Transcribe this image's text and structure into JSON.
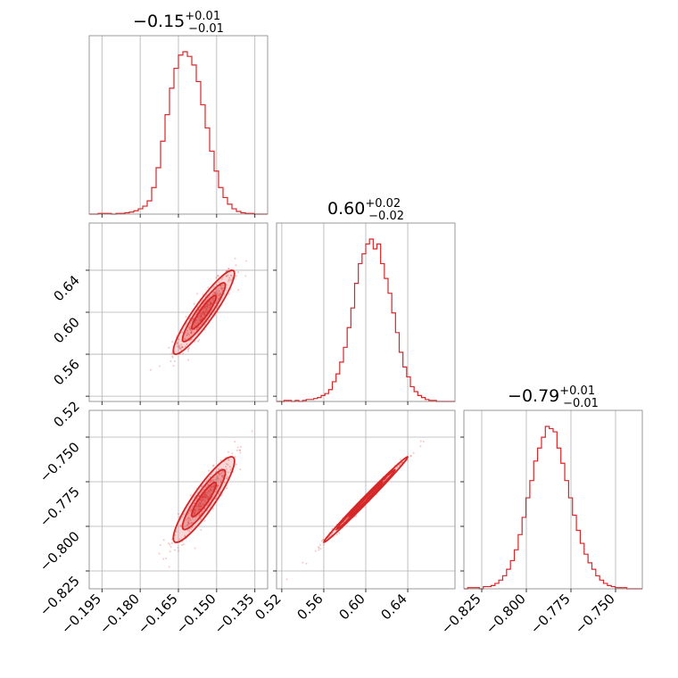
{
  "chart_data": {
    "type": "corner",
    "color": "#d62728",
    "grid": true,
    "parameters": [
      {
        "title": {
          "main": "−0.15",
          "sup": "+0.01",
          "sub": "−0.01"
        },
        "range": [
          -0.2,
          -0.13
        ]
      },
      {
        "title": {
          "main": "0.60",
          "sup": "+0.02",
          "sub": "−0.02"
        },
        "range": [
          0.515,
          0.685
        ]
      },
      {
        "title": {
          "main": "−0.79",
          "sup": "+0.01",
          "sub": "−0.01"
        },
        "range": [
          -0.835,
          -0.735
        ]
      }
    ],
    "axes": {
      "x": [
        {
          "ticks": [
            -0.195,
            -0.18,
            -0.165,
            -0.15,
            -0.135
          ],
          "labels": [
            "−0.195",
            "−0.180",
            "−0.165",
            "−0.150",
            "−0.135"
          ]
        },
        {
          "ticks": [
            0.52,
            0.56,
            0.6,
            0.64
          ],
          "labels": [
            "0.52",
            "0.56",
            "0.60",
            "0.64"
          ]
        },
        {
          "ticks": [
            -0.825,
            -0.8,
            -0.775,
            -0.75
          ],
          "labels": [
            "−0.825",
            "−0.800",
            "−0.775",
            "−0.750"
          ]
        }
      ],
      "y": [
        null,
        {
          "ticks": [
            0.52,
            0.56,
            0.6,
            0.64
          ],
          "labels": [
            "0.52",
            "0.56",
            "0.60",
            "0.64"
          ]
        },
        {
          "ticks": [
            -0.825,
            -0.8,
            -0.775,
            -0.75
          ],
          "labels": [
            "−0.825",
            "−0.800",
            "−0.775",
            "−0.750"
          ]
        }
      ]
    },
    "histograms": [
      {
        "param": 0,
        "edges": [
          -0.2,
          -0.13
        ],
        "counts": [
          0,
          0,
          1,
          1,
          1,
          0,
          1,
          1,
          2,
          3,
          5,
          8,
          12,
          20,
          40,
          70,
          110,
          150,
          190,
          220,
          240,
          245,
          238,
          225,
          200,
          165,
          130,
          95,
          65,
          40,
          25,
          15,
          8,
          4,
          2,
          1,
          1,
          0,
          0,
          0
        ]
      },
      {
        "param": 1,
        "edges": [
          0.515,
          0.685
        ],
        "counts": [
          0,
          0,
          1,
          1,
          0,
          1,
          0,
          1,
          2,
          2,
          3,
          4,
          6,
          8,
          12,
          20,
          28,
          40,
          55,
          75,
          95,
          120,
          140,
          150,
          160,
          165,
          155,
          160,
          140,
          125,
          110,
          90,
          70,
          50,
          35,
          25,
          15,
          10,
          6,
          4,
          2,
          1,
          1,
          0,
          0,
          0,
          0,
          0
        ]
      },
      {
        "param": 2,
        "edges": [
          -0.835,
          -0.735
        ],
        "counts": [
          0,
          1,
          1,
          1,
          0,
          2,
          2,
          3,
          5,
          8,
          12,
          18,
          26,
          36,
          50,
          66,
          84,
          100,
          118,
          130,
          140,
          150,
          148,
          145,
          130,
          116,
          100,
          84,
          68,
          54,
          42,
          32,
          24,
          18,
          12,
          8,
          5,
          3,
          2,
          1,
          1,
          1,
          0,
          0,
          0,
          0
        ]
      }
    ],
    "scatter": [
      {
        "x": 0,
        "y": 1,
        "center": [
          -0.155,
          0.6
        ],
        "sigma": [
          0.006,
          0.02
        ],
        "rho": 0.92,
        "npoints": 400
      },
      {
        "x": 0,
        "y": 2,
        "center": [
          -0.155,
          -0.785
        ],
        "sigma": [
          0.006,
          0.012
        ],
        "rho": 0.9,
        "npoints": 400
      },
      {
        "x": 1,
        "y": 2,
        "center": [
          0.6,
          -0.785
        ],
        "sigma": [
          0.02,
          0.012
        ],
        "rho": 0.995,
        "npoints": 400
      }
    ]
  }
}
